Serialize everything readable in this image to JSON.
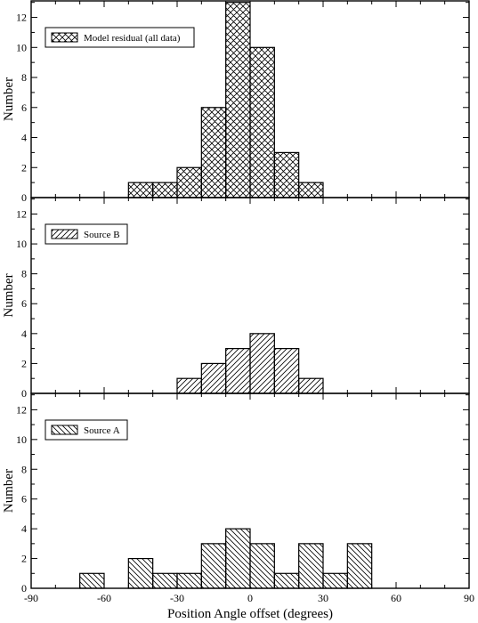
{
  "chart_data": {
    "type": "bar",
    "xlabel": "Position Angle offset (degrees)",
    "xlim": [
      -90,
      90
    ],
    "xticks": [
      "-90",
      "-60",
      "-30",
      "0",
      "30",
      "60",
      "90"
    ],
    "panels": [
      {
        "ylabel": "Number",
        "ylim": [
          0,
          13.1
        ],
        "yticks": [
          "0",
          "2",
          "4",
          "6",
          "8",
          "10",
          "12"
        ],
        "legend": "Model residual (all data)",
        "legend_position": "top-left",
        "hatch": "crosshatch",
        "bins": [
          {
            "x0": -50,
            "x1": -40,
            "count": 1
          },
          {
            "x0": -40,
            "x1": -30,
            "count": 1
          },
          {
            "x0": -30,
            "x1": -20,
            "count": 2
          },
          {
            "x0": -20,
            "x1": -10,
            "count": 6
          },
          {
            "x0": -10,
            "x1": 0,
            "count": 13
          },
          {
            "x0": 0,
            "x1": 10,
            "count": 10
          },
          {
            "x0": 10,
            "x1": 20,
            "count": 3
          },
          {
            "x0": 20,
            "x1": 30,
            "count": 1
          }
        ]
      },
      {
        "ylabel": "Number",
        "ylim": [
          0,
          13.1
        ],
        "yticks": [
          "0",
          "2",
          "4",
          "6",
          "8",
          "10",
          "12"
        ],
        "legend": "Source B",
        "legend_position": "top-left",
        "hatch": "forward-diagonal",
        "bins": [
          {
            "x0": -30,
            "x1": -20,
            "count": 1
          },
          {
            "x0": -20,
            "x1": -10,
            "count": 2
          },
          {
            "x0": -10,
            "x1": 0,
            "count": 3
          },
          {
            "x0": 0,
            "x1": 10,
            "count": 4
          },
          {
            "x0": 10,
            "x1": 20,
            "count": 3
          },
          {
            "x0": 20,
            "x1": 30,
            "count": 1
          }
        ]
      },
      {
        "ylabel": "Number",
        "ylim": [
          0,
          13.1
        ],
        "yticks": [
          "0",
          "2",
          "4",
          "6",
          "8",
          "10",
          "12"
        ],
        "legend": "Source A",
        "legend_position": "top-left",
        "hatch": "back-diagonal",
        "bins": [
          {
            "x0": -70,
            "x1": -60,
            "count": 1
          },
          {
            "x0": -50,
            "x1": -40,
            "count": 2
          },
          {
            "x0": -40,
            "x1": -30,
            "count": 1
          },
          {
            "x0": -30,
            "x1": -20,
            "count": 1
          },
          {
            "x0": -20,
            "x1": -10,
            "count": 3
          },
          {
            "x0": -10,
            "x1": 0,
            "count": 4
          },
          {
            "x0": 0,
            "x1": 10,
            "count": 3
          },
          {
            "x0": 10,
            "x1": 20,
            "count": 1
          },
          {
            "x0": 20,
            "x1": 30,
            "count": 3
          },
          {
            "x0": 30,
            "x1": 40,
            "count": 1
          },
          {
            "x0": 40,
            "x1": 50,
            "count": 3
          }
        ]
      }
    ]
  }
}
